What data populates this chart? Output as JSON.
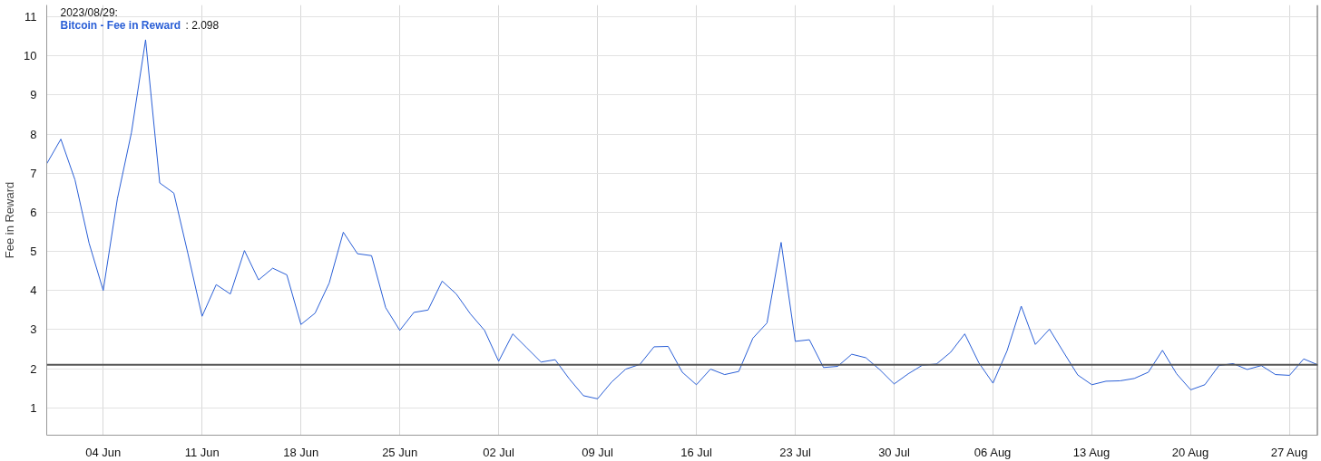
{
  "chart_data": {
    "type": "line",
    "ylabel": "Fee in Reward",
    "x": [
      "2023-05-31",
      "2023-06-01",
      "2023-06-02",
      "2023-06-03",
      "2023-06-04",
      "2023-06-05",
      "2023-06-06",
      "2023-06-07",
      "2023-06-08",
      "2023-06-09",
      "2023-06-10",
      "2023-06-11",
      "2023-06-12",
      "2023-06-13",
      "2023-06-14",
      "2023-06-15",
      "2023-06-16",
      "2023-06-17",
      "2023-06-18",
      "2023-06-19",
      "2023-06-20",
      "2023-06-21",
      "2023-06-22",
      "2023-06-23",
      "2023-06-24",
      "2023-06-25",
      "2023-06-26",
      "2023-06-27",
      "2023-06-28",
      "2023-06-29",
      "2023-06-30",
      "2023-07-01",
      "2023-07-02",
      "2023-07-03",
      "2023-07-04",
      "2023-07-05",
      "2023-07-06",
      "2023-07-07",
      "2023-07-08",
      "2023-07-09",
      "2023-07-10",
      "2023-07-11",
      "2023-07-12",
      "2023-07-13",
      "2023-07-14",
      "2023-07-15",
      "2023-07-16",
      "2023-07-17",
      "2023-07-18",
      "2023-07-19",
      "2023-07-20",
      "2023-07-21",
      "2023-07-22",
      "2023-07-23",
      "2023-07-24",
      "2023-07-25",
      "2023-07-26",
      "2023-07-27",
      "2023-07-28",
      "2023-07-29",
      "2023-07-30",
      "2023-07-31",
      "2023-08-01",
      "2023-08-02",
      "2023-08-03",
      "2023-08-04",
      "2023-08-05",
      "2023-08-06",
      "2023-08-07",
      "2023-08-08",
      "2023-08-09",
      "2023-08-10",
      "2023-08-11",
      "2023-08-12",
      "2023-08-13",
      "2023-08-14",
      "2023-08-15",
      "2023-08-16",
      "2023-08-17",
      "2023-08-18",
      "2023-08-19",
      "2023-08-20",
      "2023-08-21",
      "2023-08-22",
      "2023-08-23",
      "2023-08-24",
      "2023-08-25",
      "2023-08-26",
      "2023-08-27",
      "2023-08-28",
      "2023-08-29"
    ],
    "series": [
      {
        "name": "Bitcoin - Fee in Reward",
        "color": "#2a5fd6",
        "values": [
          7.24,
          7.87,
          6.83,
          5.21,
          4.0,
          6.34,
          8.04,
          10.41,
          6.75,
          6.49,
          4.94,
          3.34,
          4.15,
          3.91,
          5.02,
          4.27,
          4.57,
          4.4,
          3.13,
          3.42,
          4.19,
          5.49,
          4.94,
          4.89,
          3.56,
          2.98,
          3.44,
          3.5,
          4.24,
          3.91,
          3.4,
          2.98,
          2.19,
          2.89,
          2.53,
          2.17,
          2.23,
          1.74,
          1.31,
          1.23,
          1.66,
          1.99,
          2.11,
          2.56,
          2.57,
          1.91,
          1.59,
          1.99,
          1.85,
          1.93,
          2.78,
          3.17,
          5.23,
          2.7,
          2.74,
          2.03,
          2.06,
          2.37,
          2.28,
          1.97,
          1.61,
          1.87,
          2.09,
          2.12,
          2.42,
          2.89,
          2.15,
          1.63,
          2.46,
          3.6,
          2.62,
          3.01,
          2.42,
          1.84,
          1.59,
          1.68,
          1.69,
          1.75,
          1.91,
          2.47,
          1.87,
          1.46,
          1.59,
          2.08,
          2.13,
          1.98,
          2.08,
          1.85,
          1.83,
          2.25,
          2.098
        ]
      }
    ],
    "xlim": [
      "2023-05-31",
      "2023-08-29"
    ],
    "xticks": [
      {
        "value": "2023-06-04",
        "label": "04 Jun"
      },
      {
        "value": "2023-06-11",
        "label": "11 Jun"
      },
      {
        "value": "2023-06-18",
        "label": "18 Jun"
      },
      {
        "value": "2023-06-25",
        "label": "25 Jun"
      },
      {
        "value": "2023-07-02",
        "label": "02 Jul"
      },
      {
        "value": "2023-07-09",
        "label": "09 Jul"
      },
      {
        "value": "2023-07-16",
        "label": "16 Jul"
      },
      {
        "value": "2023-07-23",
        "label": "23 Jul"
      },
      {
        "value": "2023-07-30",
        "label": "30 Jul"
      },
      {
        "value": "2023-08-06",
        "label": "06 Aug"
      },
      {
        "value": "2023-08-13",
        "label": "13 Aug"
      },
      {
        "value": "2023-08-20",
        "label": "20 Aug"
      },
      {
        "value": "2023-08-27",
        "label": "27 Aug"
      }
    ],
    "ylim": [
      0.3,
      11.3
    ],
    "yticks": [
      1,
      2,
      3,
      4,
      5,
      6,
      7,
      8,
      9,
      10,
      11
    ],
    "grid": true,
    "marker": "none",
    "line_style": "solid",
    "ref_lines": [
      {
        "axis": "y",
        "value": 2.098,
        "color": "#555555"
      },
      {
        "axis": "x",
        "value": "2023-08-29",
        "color": "#555555"
      }
    ],
    "annotations": [
      "2023/08/29:",
      ": 2.098"
    ]
  }
}
